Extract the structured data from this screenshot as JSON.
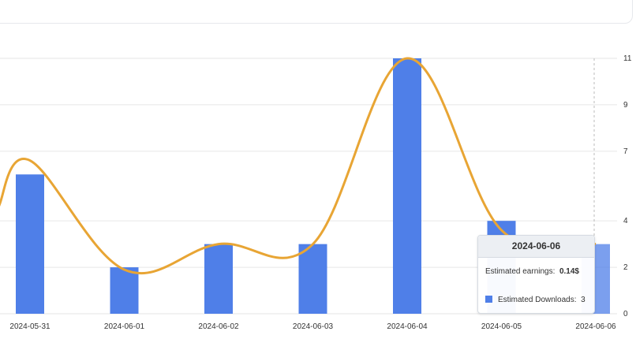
{
  "chart_data": {
    "type": "bar",
    "categories": [
      "2024-05-31",
      "2024-06-01",
      "2024-06-02",
      "2024-06-03",
      "2024-06-04",
      "2024-06-05",
      "2024-06-06"
    ],
    "series": [
      {
        "name": "Estimated Downloads",
        "type": "bar",
        "values": [
          6,
          2,
          3,
          3,
          11,
          4,
          3
        ],
        "color": "#4f7fe8"
      },
      {
        "type": "line",
        "smooth": true,
        "values": [
          6.6,
          1.9,
          3.0,
          3.0,
          11.0,
          3.6,
          3.0
        ],
        "color": "#e8a534"
      }
    ],
    "y_ticks": [
      "0",
      "2",
      "4",
      "7",
      "9",
      "11"
    ],
    "ylim": [
      0,
      11
    ],
    "grid": true,
    "y_axis_position": "right",
    "highlighted_category": "2024-06-06"
  },
  "tooltip": {
    "title": "2024-06-06",
    "earnings_label": "Estimated earnings:",
    "earnings_value": "0.14$",
    "downloads_label": "Estimated Downloads:",
    "downloads_value": "3"
  }
}
